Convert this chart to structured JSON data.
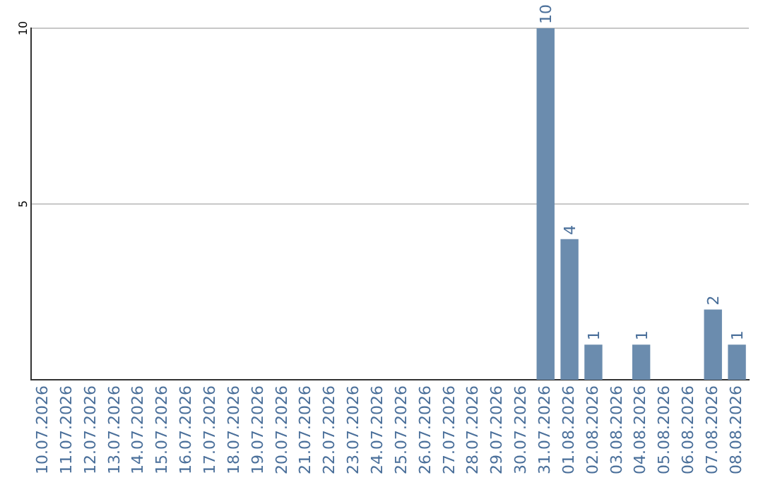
{
  "chart_data": {
    "type": "bar",
    "categories": [
      "10.07.2026",
      "11.07.2026",
      "12.07.2026",
      "13.07.2026",
      "14.07.2026",
      "15.07.2026",
      "16.07.2026",
      "17.07.2026",
      "18.07.2026",
      "19.07.2026",
      "20.07.2026",
      "21.07.2026",
      "22.07.2026",
      "23.07.2026",
      "24.07.2026",
      "25.07.2026",
      "26.07.2026",
      "27.07.2026",
      "28.07.2026",
      "29.07.2026",
      "30.07.2026",
      "31.07.2026",
      "01.08.2026",
      "02.08.2026",
      "03.08.2026",
      "04.08.2026",
      "05.08.2026",
      "06.08.2026",
      "07.08.2026",
      "08.08.2026"
    ],
    "values": [
      0,
      0,
      0,
      0,
      0,
      0,
      0,
      0,
      0,
      0,
      0,
      0,
      0,
      0,
      0,
      0,
      0,
      0,
      0,
      0,
      0,
      10,
      4,
      1,
      0,
      1,
      0,
      0,
      2,
      1
    ],
    "value_labels": [
      null,
      null,
      null,
      null,
      null,
      null,
      null,
      null,
      null,
      null,
      null,
      null,
      null,
      null,
      null,
      null,
      null,
      null,
      null,
      null,
      null,
      "10",
      "4",
      "1",
      null,
      "1",
      null,
      null,
      "2",
      "1"
    ],
    "color": "#6b8cae",
    "ylim": [
      0,
      10
    ],
    "yticks": [
      5,
      10
    ],
    "grid": "y",
    "legend": false
  }
}
